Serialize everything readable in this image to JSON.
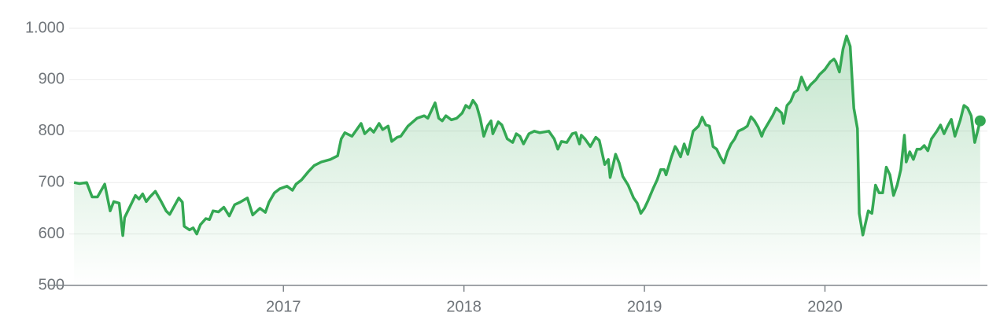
{
  "chart_data": {
    "type": "line",
    "x": [
      2015.84,
      2015.87,
      2015.91,
      2015.94,
      2015.97,
      2016.01,
      2016.04,
      2016.06,
      2016.09,
      2016.11,
      2016.12,
      2016.18,
      2016.2,
      2016.22,
      2016.24,
      2016.26,
      2016.29,
      2016.32,
      2016.35,
      2016.37,
      2016.42,
      2016.44,
      2016.45,
      2016.48,
      2016.5,
      2016.52,
      2016.54,
      2016.57,
      2016.59,
      2016.61,
      2016.64,
      2016.67,
      2016.7,
      2016.73,
      2016.76,
      2016.8,
      2016.83,
      2016.87,
      2016.9,
      2016.92,
      2016.95,
      2016.98,
      2017.02,
      2017.05,
      2017.07,
      2017.1,
      2017.14,
      2017.17,
      2017.21,
      2017.26,
      2017.3,
      2017.32,
      2017.34,
      2017.38,
      2017.41,
      2017.43,
      2017.45,
      2017.48,
      2017.5,
      2017.53,
      2017.55,
      2017.58,
      2017.6,
      2017.63,
      2017.65,
      2017.69,
      2017.74,
      2017.78,
      2017.8,
      2017.84,
      2017.86,
      2017.88,
      2017.9,
      2017.93,
      2017.96,
      2017.99,
      2018.01,
      2018.03,
      2018.05,
      2018.07,
      2018.09,
      2018.11,
      2018.13,
      2018.15,
      2018.16,
      2018.19,
      2018.21,
      2018.24,
      2018.27,
      2018.29,
      2018.31,
      2018.33,
      2018.36,
      2018.39,
      2018.42,
      2018.47,
      2018.5,
      2018.52,
      2018.54,
      2018.57,
      2018.6,
      2018.62,
      2018.64,
      2018.65,
      2018.67,
      2018.7,
      2018.73,
      2018.75,
      2018.78,
      2018.8,
      2018.81,
      2018.84,
      2018.86,
      2018.88,
      2018.91,
      2018.94,
      2018.96,
      2018.98,
      2019.0,
      2019.02,
      2019.05,
      2019.07,
      2019.09,
      2019.11,
      2019.12,
      2019.15,
      2019.17,
      2019.18,
      2019.2,
      2019.22,
      2019.24,
      2019.25,
      2019.27,
      2019.3,
      2019.32,
      2019.34,
      2019.36,
      2019.38,
      2019.4,
      2019.42,
      2019.44,
      2019.46,
      2019.48,
      2019.5,
      2019.52,
      2019.55,
      2019.57,
      2019.59,
      2019.61,
      2019.63,
      2019.65,
      2019.66,
      2019.69,
      2019.71,
      2019.73,
      2019.76,
      2019.77,
      2019.79,
      2019.81,
      2019.83,
      2019.85,
      2019.87,
      2019.9,
      2019.92,
      2019.95,
      2019.97,
      2020.0,
      2020.03,
      2020.05,
      2020.06,
      2020.08,
      2020.1,
      2020.12,
      2020.14,
      2020.16,
      2020.18,
      2020.19,
      2020.21,
      2020.24,
      2020.26,
      2020.28,
      2020.3,
      2020.32,
      2020.34,
      2020.36,
      2020.38,
      2020.4,
      2020.42,
      2020.44,
      2020.45,
      2020.47,
      2020.49,
      2020.51,
      2020.53,
      2020.55,
      2020.57,
      2020.59,
      2020.62,
      2020.64,
      2020.66,
      2020.68,
      2020.7,
      2020.72,
      2020.75,
      2020.77,
      2020.79,
      2020.81,
      2020.83,
      2020.86
    ],
    "series": [
      {
        "color": "#34a853",
        "values": [
          700,
          698,
          700,
          672,
          672,
          697,
          645,
          663,
          660,
          597,
          632,
          675,
          668,
          678,
          663,
          672,
          683,
          665,
          645,
          638,
          670,
          662,
          615,
          608,
          612,
          600,
          618,
          630,
          628,
          645,
          643,
          652,
          635,
          657,
          662,
          670,
          637,
          650,
          642,
          662,
          680,
          688,
          693,
          685,
          697,
          705,
          722,
          733,
          740,
          745,
          752,
          785,
          797,
          790,
          805,
          815,
          795,
          805,
          798,
          815,
          803,
          810,
          780,
          788,
          790,
          810,
          825,
          830,
          825,
          855,
          825,
          820,
          830,
          822,
          825,
          835,
          850,
          845,
          860,
          850,
          825,
          790,
          810,
          820,
          795,
          818,
          812,
          785,
          778,
          795,
          790,
          775,
          795,
          800,
          797,
          800,
          785,
          765,
          780,
          778,
          795,
          797,
          775,
          792,
          785,
          770,
          788,
          782,
          735,
          745,
          710,
          755,
          738,
          712,
          695,
          670,
          660,
          640,
          650,
          665,
          690,
          705,
          725,
          725,
          715,
          750,
          770,
          765,
          750,
          775,
          755,
          770,
          800,
          810,
          827,
          812,
          810,
          770,
          765,
          750,
          738,
          760,
          775,
          785,
          800,
          805,
          810,
          828,
          820,
          808,
          790,
          800,
          818,
          830,
          845,
          835,
          815,
          850,
          858,
          875,
          880,
          905,
          880,
          890,
          900,
          910,
          920,
          935,
          940,
          935,
          915,
          960,
          985,
          965,
          845,
          805,
          640,
          598,
          645,
          640,
          695,
          680,
          680,
          730,
          715,
          675,
          695,
          725,
          792,
          740,
          760,
          745,
          765,
          765,
          772,
          762,
          785,
          800,
          812,
          795,
          810,
          823,
          790,
          822,
          850,
          845,
          830,
          778,
          820
        ]
      }
    ],
    "xlim": [
      2015.7,
      2020.9
    ],
    "xticks": [
      2017,
      2018,
      2019,
      2020
    ],
    "ylim": [
      500,
      1000
    ],
    "yticks": [
      500,
      600,
      700,
      800,
      900,
      {
        "value": 1000,
        "label": "1.000"
      }
    ],
    "grid": true
  }
}
